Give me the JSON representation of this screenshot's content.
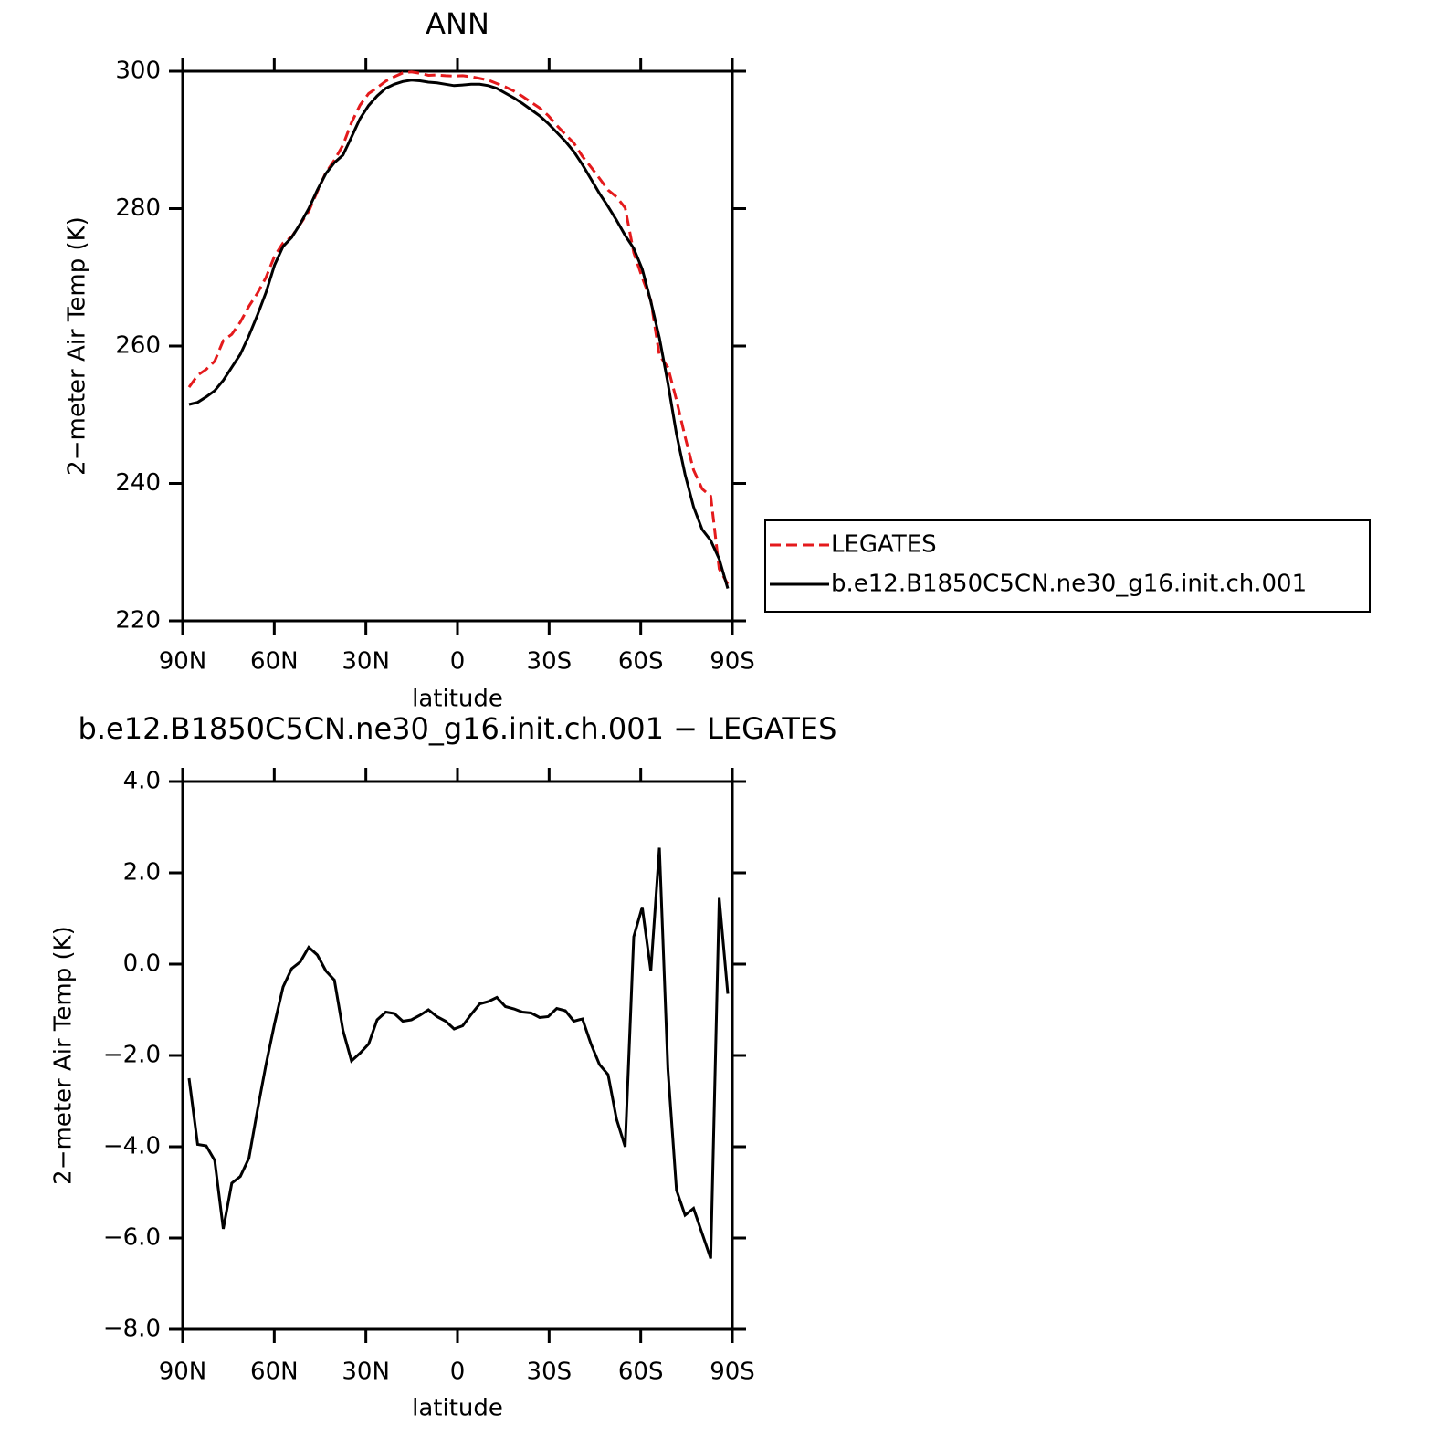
{
  "chart_data": [
    {
      "type": "line",
      "title": "ANN",
      "y_label": "2−meter Air Temp (K)",
      "x_label": "latitude",
      "x": [
        87.9,
        85.1,
        82.3,
        79.5,
        76.7,
        73.9,
        71.1,
        68.3,
        65.5,
        62.7,
        59.9,
        57.1,
        54.3,
        51.5,
        48.7,
        45.9,
        43.1,
        40.3,
        37.5,
        34.7,
        31.9,
        29.1,
        26.3,
        23.5,
        20.7,
        17.9,
        15.1,
        12.3,
        9.5,
        6.7,
        3.9,
        1.1,
        -1.7,
        -4.5,
        -7.3,
        -10.1,
        -12.9,
        -15.7,
        -18.5,
        -21.3,
        -24.1,
        -26.9,
        -29.7,
        -32.5,
        -35.3,
        -38.1,
        -40.9,
        -43.7,
        -46.5,
        -49.3,
        -52.1,
        -54.9,
        -57.7,
        -60.5,
        -63.3,
        -66.1,
        -68.9,
        -71.7,
        -74.5,
        -77.3,
        -80.1,
        -82.9,
        -85.7,
        -88.5
      ],
      "xlim": [
        90,
        -90
      ],
      "xticks": [
        {
          "value": 90,
          "label": "90N"
        },
        {
          "value": 60,
          "label": "60N"
        },
        {
          "value": 30,
          "label": "30N"
        },
        0,
        {
          "value": -30,
          "label": "30S"
        },
        {
          "value": -60,
          "label": "60S"
        },
        {
          "value": -90,
          "label": "90S"
        }
      ],
      "ylim": [
        220,
        300
      ],
      "yticks": [
        220,
        240,
        260,
        280,
        300
      ],
      "legend": "right",
      "series": [
        {
          "name": "LEGATES",
          "color": "#e41a1c",
          "dash": "dashed",
          "values": [
            254.0,
            255.75,
            256.6,
            257.8,
            260.8,
            261.7,
            263.5,
            265.8,
            267.7,
            270.0,
            273.1,
            275.0,
            275.9,
            277.75,
            279.6,
            282.5,
            285.25,
            287.05,
            289.25,
            292.5,
            295.05,
            296.75,
            297.6,
            298.55,
            299.2,
            299.75,
            299.9,
            299.7,
            299.4,
            299.45,
            299.35,
            299.3,
            299.35,
            299.2,
            298.95,
            298.7,
            298.2,
            297.7,
            297.1,
            296.35,
            295.5,
            294.65,
            293.55,
            292.1,
            290.8,
            289.55,
            287.6,
            286.05,
            284.4,
            282.7,
            281.7,
            280.1,
            273.6,
            269.95,
            266.65,
            258.65,
            256.9,
            252.15,
            246.8,
            241.95,
            239.2,
            238.15,
            227.55,
            225.35
          ]
        },
        {
          "name": "b.e12.B1850C5CN.ne30_g16.init.ch.001",
          "color": "#000000",
          "dash": "solid",
          "values": [
            251.5,
            251.8,
            252.6,
            253.5,
            255.0,
            256.9,
            258.8,
            261.5,
            264.5,
            267.8,
            271.8,
            274.5,
            275.8,
            277.8,
            280.0,
            282.7,
            285.1,
            286.7,
            287.8,
            290.4,
            293.1,
            295.0,
            296.4,
            297.5,
            298.1,
            298.5,
            298.7,
            298.6,
            298.4,
            298.3,
            298.1,
            297.9,
            298.0,
            298.1,
            298.1,
            297.9,
            297.5,
            296.8,
            296.1,
            295.3,
            294.4,
            293.5,
            292.4,
            291.1,
            289.8,
            288.3,
            286.4,
            284.3,
            282.2,
            280.3,
            278.3,
            276.1,
            274.2,
            271.2,
            266.5,
            261.2,
            254.6,
            247.2,
            241.3,
            236.6,
            233.3,
            231.7,
            229.0,
            224.7
          ]
        }
      ]
    },
    {
      "type": "line",
      "title": "b.e12.B1850C5CN.ne30_g16.init.ch.001 − LEGATES",
      "y_label": "2−meter Air Temp (K)",
      "x_label": "latitude",
      "x": [
        87.9,
        85.1,
        82.3,
        79.5,
        76.7,
        73.9,
        71.1,
        68.3,
        65.5,
        62.7,
        59.9,
        57.1,
        54.3,
        51.5,
        48.7,
        45.9,
        43.1,
        40.3,
        37.5,
        34.7,
        31.9,
        29.1,
        26.3,
        23.5,
        20.7,
        17.9,
        15.1,
        12.3,
        9.5,
        6.7,
        3.9,
        1.1,
        -1.7,
        -4.5,
        -7.3,
        -10.1,
        -12.9,
        -15.7,
        -18.5,
        -21.3,
        -24.1,
        -26.9,
        -29.7,
        -32.5,
        -35.3,
        -38.1,
        -40.9,
        -43.7,
        -46.5,
        -49.3,
        -52.1,
        -54.9,
        -57.7,
        -60.5,
        -63.3,
        -66.1,
        -68.9,
        -71.7,
        -74.5,
        -77.3,
        -80.1,
        -82.9,
        -85.7,
        -88.5
      ],
      "xlim": [
        90,
        -90
      ],
      "xticks": [
        {
          "value": 90,
          "label": "90N"
        },
        {
          "value": 60,
          "label": "60N"
        },
        {
          "value": 30,
          "label": "30N"
        },
        0,
        {
          "value": -30,
          "label": "30S"
        },
        {
          "value": -60,
          "label": "60S"
        },
        {
          "value": -90,
          "label": "90S"
        }
      ],
      "ylim": [
        -8,
        4
      ],
      "yticks": [
        {
          "value": -8,
          "label": "−8.0"
        },
        {
          "value": -6,
          "label": "−6.0"
        },
        {
          "value": -4,
          "label": "−4.0"
        },
        {
          "value": -2,
          "label": "−2.0"
        },
        {
          "value": 0,
          "label": "0.0"
        },
        {
          "value": 2,
          "label": "2.0"
        },
        {
          "value": 4,
          "label": "4.0"
        }
      ],
      "color": "#000000",
      "values": [
        -2.5,
        -3.95,
        -3.98,
        -4.3,
        -5.8,
        -4.8,
        -4.65,
        -4.25,
        -3.2,
        -2.2,
        -1.3,
        -0.5,
        -0.1,
        0.05,
        0.37,
        0.2,
        -0.15,
        -0.35,
        -1.45,
        -2.12,
        -1.95,
        -1.75,
        -1.22,
        -1.05,
        -1.08,
        -1.25,
        -1.22,
        -1.12,
        -1.0,
        -1.15,
        -1.25,
        -1.42,
        -1.35,
        -1.1,
        -0.87,
        -0.82,
        -0.73,
        -0.93,
        -0.98,
        -1.05,
        -1.07,
        -1.17,
        -1.15,
        -0.97,
        -1.02,
        -1.25,
        -1.2,
        -1.75,
        -2.2,
        -2.42,
        -3.4,
        -4.0,
        0.6,
        1.25,
        -0.15,
        2.55,
        -2.3,
        -4.95,
        -5.5,
        -5.35,
        -5.9,
        -6.45,
        1.45,
        -0.65
      ]
    }
  ]
}
